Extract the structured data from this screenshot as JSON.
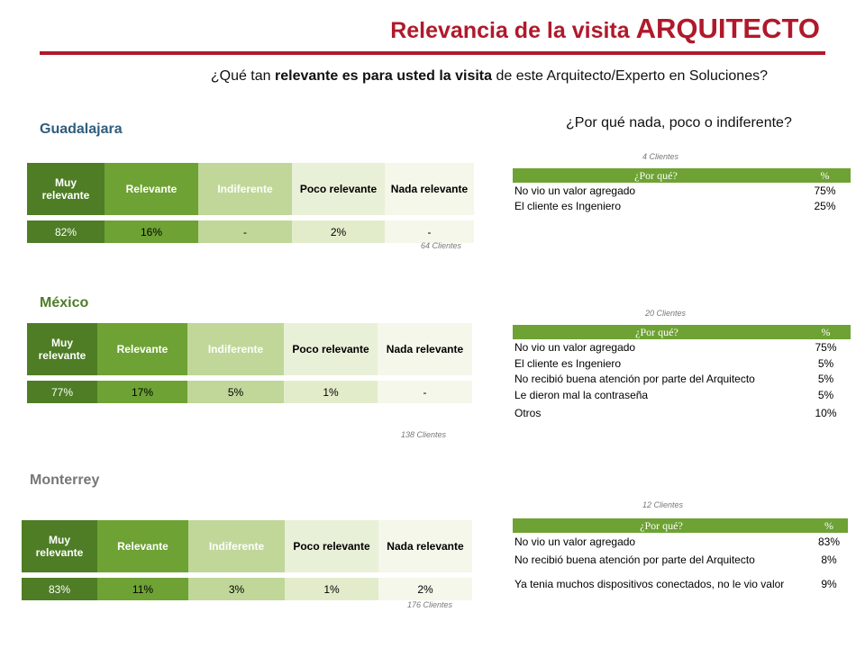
{
  "title": {
    "prefix": "Relevancia de la visita",
    "emphasis": "ARQUITECTO"
  },
  "question": {
    "part1": "¿Qué tan ",
    "bold": "relevante es para usted la visita",
    "part2": " de este Arquitecto/Experto en Soluciones?"
  },
  "why_heading": "¿Por qué nada, poco o indiferente?",
  "rating_headers": [
    "Muy relevante",
    "Relevante",
    "Indiferente",
    "Poco relevante",
    "Nada relevante"
  ],
  "reason_headers": {
    "reason": "¿Por qué?",
    "pct": "%"
  },
  "cities": [
    {
      "name": "Guadalajara",
      "values": [
        "82%",
        "16%",
        "-",
        "2%",
        "-"
      ],
      "clients": "64 Clientes",
      "reasons_clients": "4 Clientes",
      "reasons": [
        {
          "reason": "No vio un valor agregado",
          "pct": "75%"
        },
        {
          "reason": "El cliente es Ingeniero",
          "pct": "25%"
        }
      ]
    },
    {
      "name": "México",
      "values": [
        "77%",
        "17%",
        "5%",
        "1%",
        "-"
      ],
      "clients": "138 Clientes",
      "reasons_clients": "20 Clientes",
      "reasons": [
        {
          "reason": "No vio un valor agregado",
          "pct": "75%"
        },
        {
          "reason": "El cliente es Ingeniero",
          "pct": "5%"
        },
        {
          "reason": "No recibió buena atención por parte del Arquitecto",
          "pct": "5%"
        },
        {
          "reason": "Le dieron mal la contraseña",
          "pct": "5%"
        },
        {
          "reason": "Otros",
          "pct": "10%"
        }
      ]
    },
    {
      "name": "Monterrey",
      "values": [
        "83%",
        "11%",
        "3%",
        "1%",
        "2%"
      ],
      "clients": "176 Clientes",
      "reasons_clients": "12 Clientes",
      "reasons": [
        {
          "reason": "No vio un valor agregado",
          "pct": "83%"
        },
        {
          "reason": "No recibió buena atención por parte del Arquitecto",
          "pct": "8%"
        },
        {
          "reason": "Ya tenia muchos dispositivos conectados, no le vio valor",
          "pct": "9%"
        }
      ]
    }
  ],
  "colors": {
    "title_red": "#b0192b",
    "dark_green": "#4e7d25",
    "green": "#6ea234",
    "light_green": "#c0d799",
    "pale_green": "#e9f0d8",
    "city_blue": "#2f5d7d",
    "city_green": "#4e7d2a",
    "city_gray": "#777777"
  }
}
